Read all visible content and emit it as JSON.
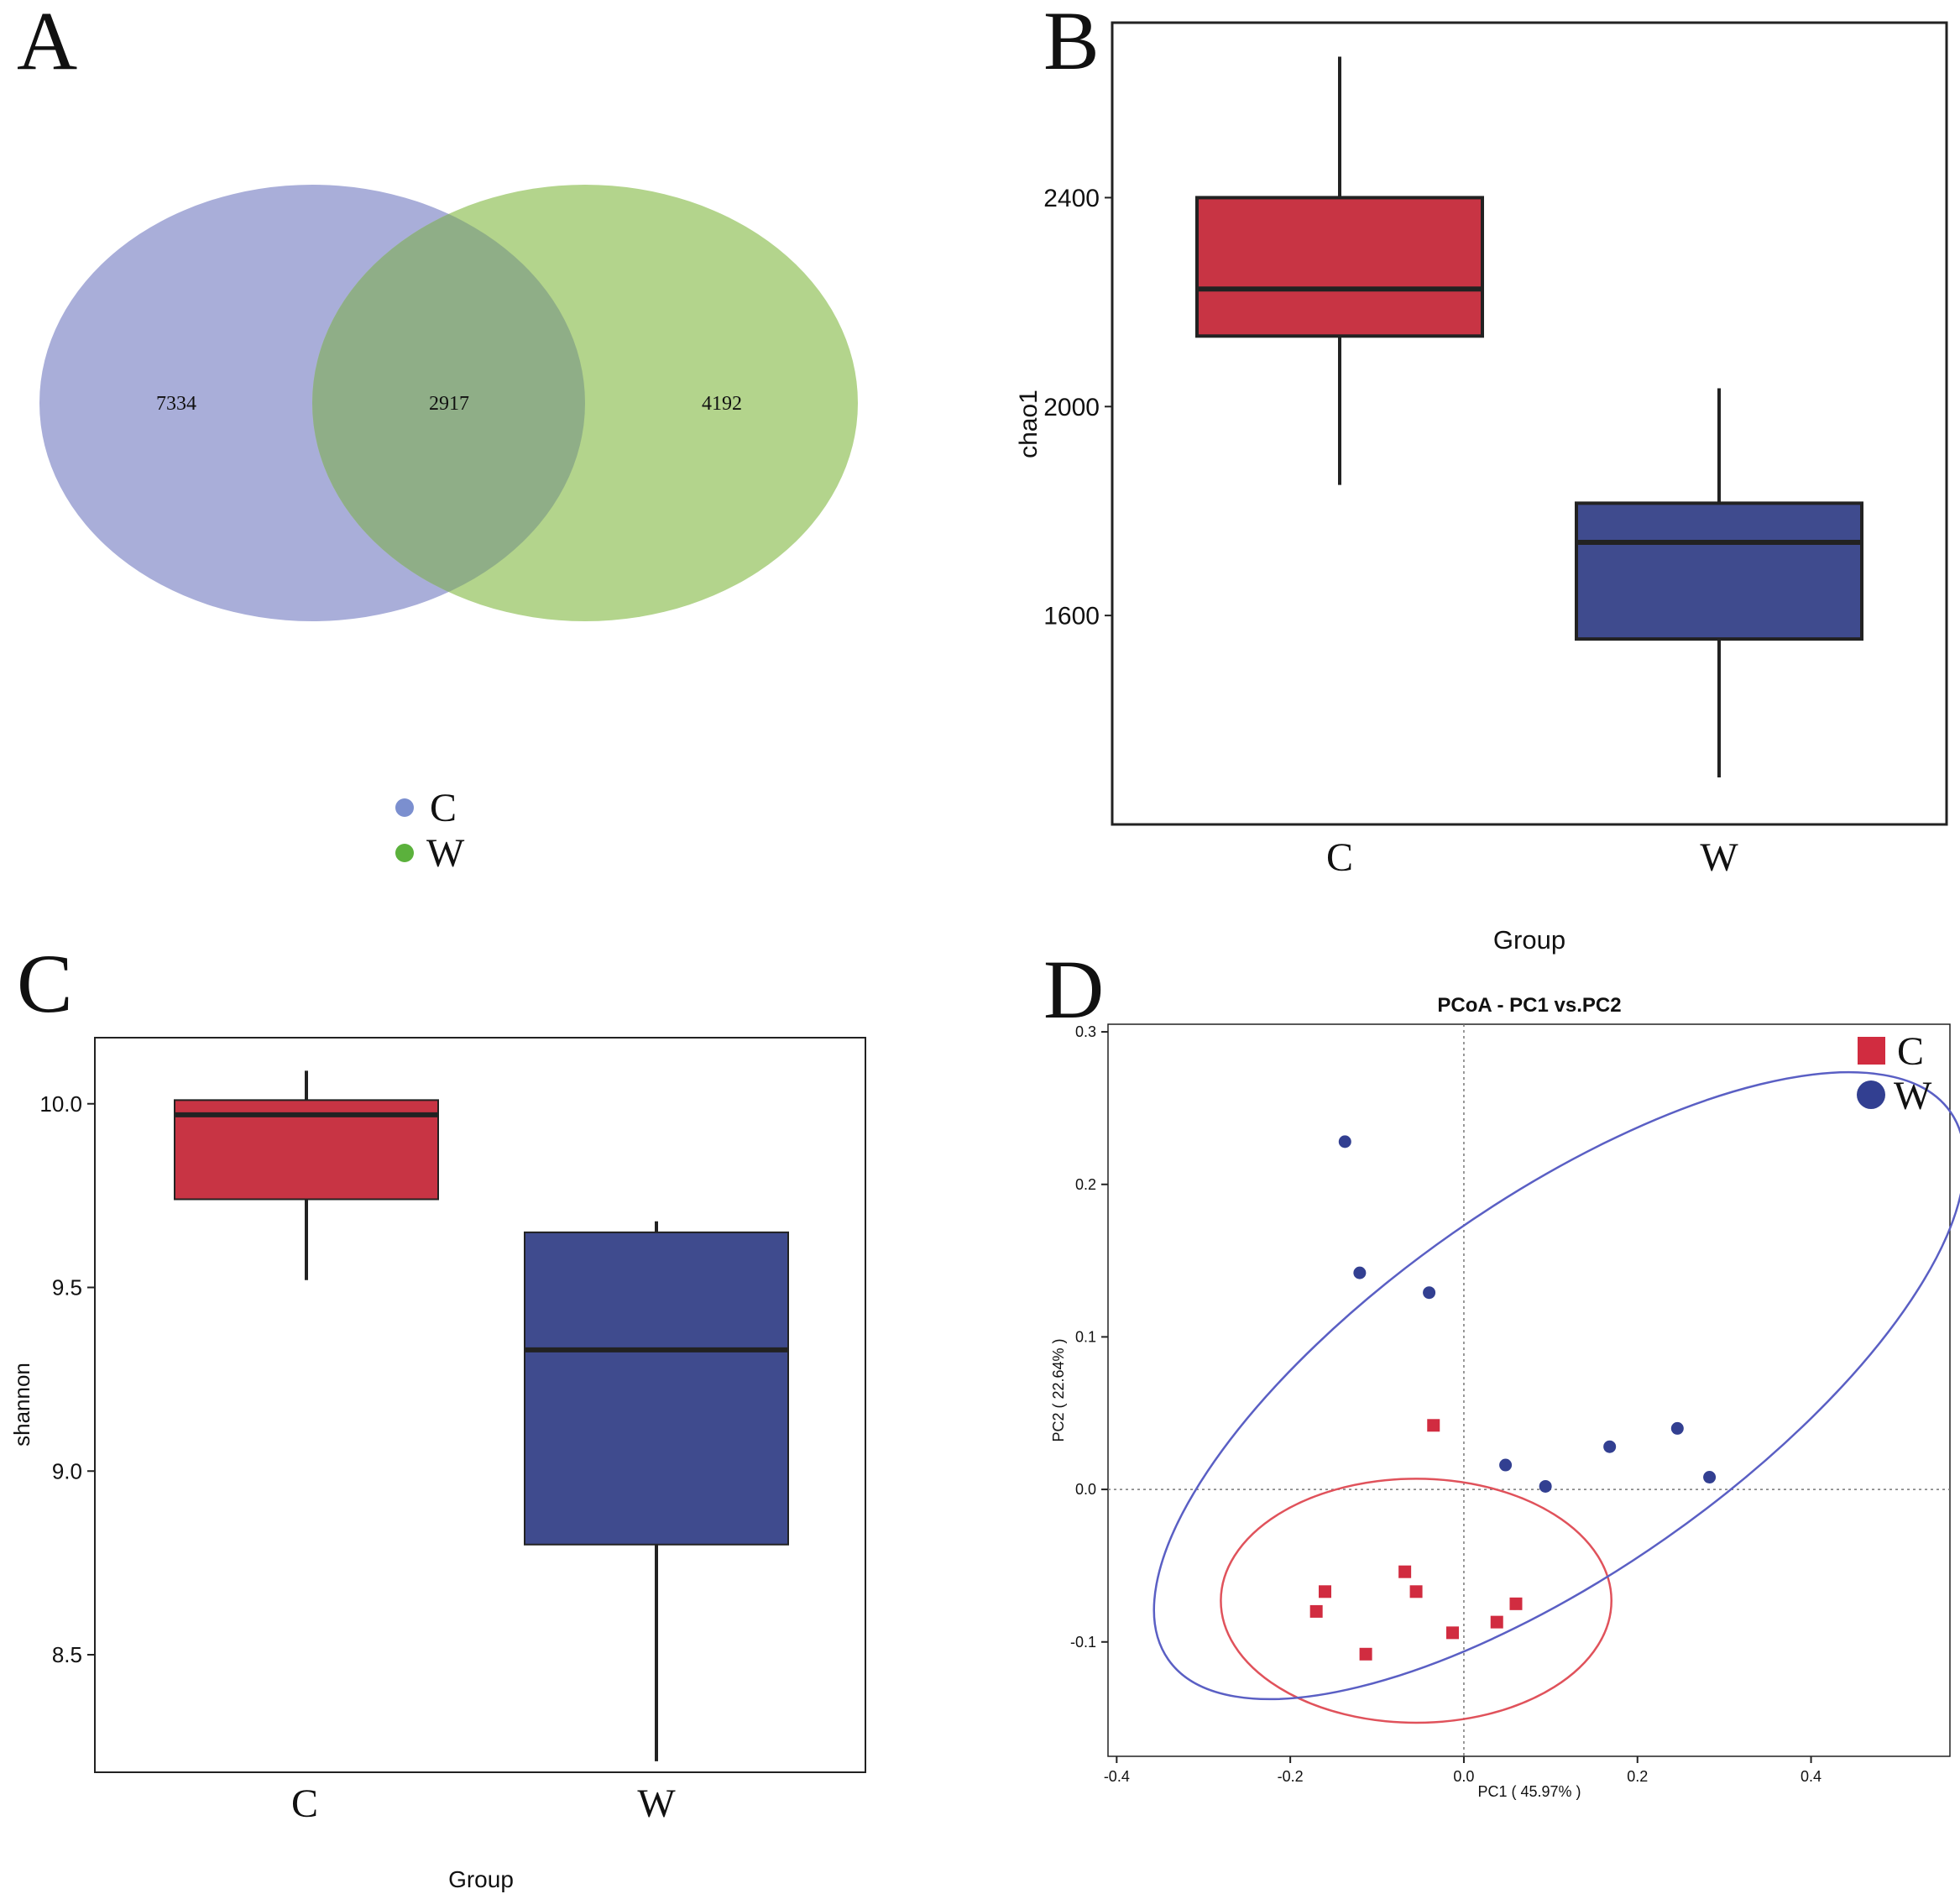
{
  "panels": {
    "a": {
      "letter": "A",
      "chart_data": {
        "type": "venn",
        "sets": [
          {
            "name": "C",
            "color": "#a9aed9"
          },
          {
            "name": "W",
            "color": "#b3d48c"
          }
        ],
        "overlap_color": "#8fae87",
        "regions": {
          "C_only": "7334",
          "both": "2917",
          "W_only": "4192"
        },
        "legend": [
          {
            "label": "C",
            "color": "#7b8fcf"
          },
          {
            "label": "W",
            "color": "#5bb13c"
          }
        ]
      }
    },
    "b": {
      "letter": "B",
      "chart_data": {
        "type": "boxplot",
        "categories": [
          "C",
          "W"
        ],
        "xlabel": "Group",
        "ylabel": "chao1",
        "ylim": [
          1200,
          2735
        ],
        "yticks": [
          "1600",
          "2000",
          "2400"
        ],
        "boxes": [
          {
            "category": "C",
            "whisker_low": 1850,
            "q1": 2135,
            "median": 2225,
            "q3": 2400,
            "whisker_high": 2670,
            "color": "#c83444"
          },
          {
            "category": "W",
            "whisker_low": 1290,
            "q1": 1555,
            "median": 1740,
            "q3": 1815,
            "whisker_high": 2035,
            "color": "#3f4b8e"
          }
        ]
      }
    },
    "c": {
      "letter": "C",
      "chart_data": {
        "type": "boxplot",
        "categories": [
          "C",
          "W"
        ],
        "xlabel": "Group",
        "ylabel": "shannon",
        "ylim": [
          8.18,
          10.18
        ],
        "yticks": [
          "8.5",
          "9.0",
          "9.5",
          "10.0"
        ],
        "boxes": [
          {
            "category": "C",
            "whisker_low": 9.52,
            "q1": 9.74,
            "median": 9.97,
            "q3": 10.01,
            "whisker_high": 10.09,
            "color": "#c83444"
          },
          {
            "category": "W",
            "whisker_low": 8.21,
            "q1": 8.8,
            "median": 9.33,
            "q3": 9.65,
            "whisker_high": 9.68,
            "color": "#3f4b8e"
          }
        ]
      }
    },
    "d": {
      "letter": "D",
      "chart_data": {
        "type": "scatter",
        "title": "PCoA - PC1 vs.PC2",
        "xlabel": "PC1 ( 45.97% )",
        "ylabel": "PC2 ( 22.64% )",
        "xlim": [
          -0.41,
          0.56
        ],
        "ylim": [
          -0.175,
          0.305
        ],
        "xticks": [
          "-0.4",
          "-0.2",
          "0.0",
          "0.2",
          "0.4"
        ],
        "yticks": [
          "-0.1",
          "0.0",
          "0.1",
          "0.2",
          "0.3"
        ],
        "legend": [
          {
            "label": "C",
            "marker": "square",
            "color": "#d12c40"
          },
          {
            "label": "W",
            "marker": "circle",
            "color": "#323f91"
          }
        ],
        "series": [
          {
            "name": "C",
            "marker": "square",
            "color": "#d12c40",
            "points": [
              [
                -0.035,
                0.042
              ],
              [
                -0.17,
                -0.08
              ],
              [
                -0.16,
                -0.067
              ],
              [
                -0.113,
                -0.108
              ],
              [
                -0.068,
                -0.054
              ],
              [
                -0.055,
                -0.067
              ],
              [
                -0.013,
                -0.094
              ],
              [
                0.038,
                -0.087
              ],
              [
                0.06,
                -0.075
              ]
            ]
          },
          {
            "name": "W",
            "marker": "circle",
            "color": "#323f91",
            "points": [
              [
                -0.137,
                0.228
              ],
              [
                -0.12,
                0.142
              ],
              [
                -0.04,
                0.129
              ],
              [
                0.048,
                0.016
              ],
              [
                0.094,
                0.002
              ],
              [
                0.168,
                0.028
              ],
              [
                0.246,
                0.04
              ],
              [
                0.283,
                0.008
              ]
            ]
          }
        ],
        "ellipses": [
          {
            "group": "C",
            "color": "#e0525b",
            "cx": -0.055,
            "cy": -0.073,
            "rx": 0.225,
            "ry": 0.08,
            "angle": 0
          },
          {
            "group": "W",
            "color": "#5a5fc4",
            "cx": 0.11,
            "cy": 0.068,
            "rx": 0.55,
            "ry": 0.122,
            "angle": -35
          }
        ]
      }
    }
  }
}
